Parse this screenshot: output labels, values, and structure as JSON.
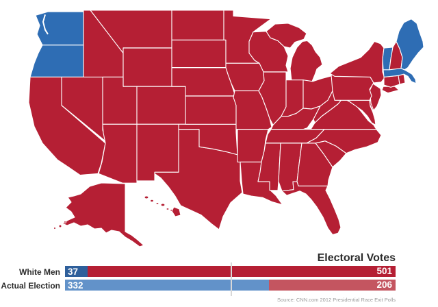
{
  "heading": "Electoral Votes",
  "source": "Source: CNN.com 2012 Presidential Race Exit Polls",
  "colors": {
    "map_blue": "#2e6db4",
    "map_red": "#b51f34",
    "threshold": "#d8d8d8",
    "heading_text": "#2b2b2b",
    "source_text": "#9b9b9b",
    "background": "#ffffff"
  },
  "rows": [
    {
      "label": "White Men",
      "blue_value": "37",
      "red_value": "501"
    },
    {
      "label": "Actual Election",
      "blue_value": "332",
      "red_value": "206"
    }
  ],
  "chart_data": {
    "type": "bar",
    "title": "Electoral Votes",
    "orientation": "horizontal_stacked",
    "categories": [
      "White Men",
      "Actual Election"
    ],
    "series": [
      {
        "name": "blue",
        "values": [
          37,
          332
        ],
        "colors": [
          "#2e5f9b",
          "#6292c9"
        ]
      },
      {
        "name": "red",
        "values": [
          501,
          206
        ],
        "colors": [
          "#b51f34",
          "#c45560"
        ]
      }
    ],
    "x_total": 538,
    "threshold_marker": 270,
    "grid": false,
    "legend": false
  },
  "map": {
    "type": "choropleth",
    "region": "United States",
    "blue_states": [
      "Washington",
      "Oregon",
      "Vermont",
      "Massachusetts",
      "Maine"
    ],
    "red_states": [
      "Alabama",
      "Alaska",
      "Arizona",
      "Arkansas",
      "California",
      "Colorado",
      "Connecticut",
      "Delaware",
      "Florida",
      "Georgia",
      "Hawaii",
      "Idaho",
      "Illinois",
      "Indiana",
      "Iowa",
      "Kansas",
      "Kentucky",
      "Louisiana",
      "Maryland",
      "Michigan",
      "Minnesota",
      "Mississippi",
      "Missouri",
      "Montana",
      "Nebraska",
      "Nevada",
      "New Hampshire",
      "New Jersey",
      "New Mexico",
      "New York",
      "North Carolina",
      "North Dakota",
      "Ohio",
      "Oklahoma",
      "Pennsylvania",
      "Rhode Island",
      "South Carolina",
      "South Dakota",
      "Tennessee",
      "Texas",
      "Utah",
      "Virginia",
      "West Virginia",
      "Wisconsin",
      "Wyoming"
    ],
    "state_parties": {
      "WA": "blue",
      "OR": "blue",
      "VT": "blue",
      "MA": "blue",
      "ME": "blue",
      "CA": "red",
      "NV": "red",
      "ID": "red",
      "MT": "red",
      "WY": "red",
      "UT": "red",
      "CO": "red",
      "AZ": "red",
      "NM": "red",
      "TX": "red",
      "OK": "red",
      "KS": "red",
      "NE": "red",
      "SD": "red",
      "ND": "red",
      "MN": "red",
      "IA": "red",
      "MO": "red",
      "AR": "red",
      "LA": "red",
      "WI": "red",
      "IL": "red",
      "MI": "red",
      "IN": "red",
      "OH": "red",
      "KY": "red",
      "TN": "red",
      "MS": "red",
      "AL": "red",
      "GA": "red",
      "FL": "red",
      "SC": "red",
      "NC": "red",
      "VA": "red",
      "WV": "red",
      "PA": "red",
      "NY": "red",
      "NJ": "red",
      "DE": "red",
      "MD": "red",
      "CT": "red",
      "RI": "red",
      "NH": "red",
      "AK": "red",
      "HI": "red"
    }
  }
}
